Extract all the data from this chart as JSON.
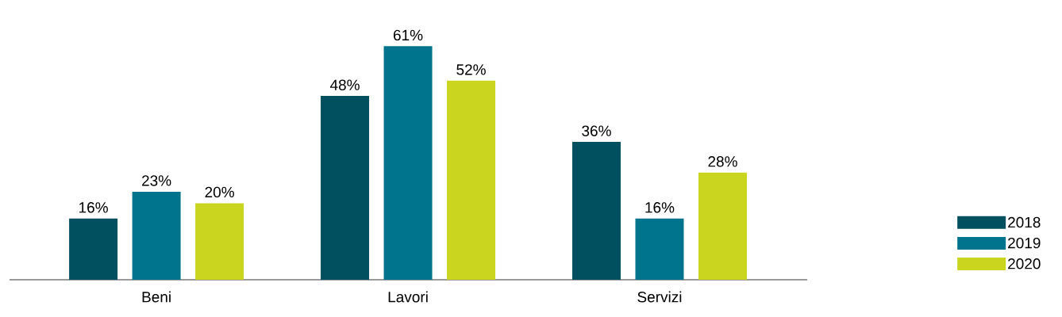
{
  "chart_data": {
    "type": "bar",
    "categories": [
      "Beni",
      "Lavori",
      "Servizi"
    ],
    "series": [
      {
        "name": "2018",
        "color": "#00505f",
        "values": [
          16,
          48,
          36
        ],
        "value_labels": [
          "16%",
          "48%",
          "36%"
        ]
      },
      {
        "name": "2019",
        "color": "#00748d",
        "values": [
          23,
          61,
          16
        ],
        "value_labels": [
          "23%",
          "61%",
          "16%"
        ]
      },
      {
        "name": "2020",
        "color": "#c9d51f",
        "values": [
          20,
          52,
          28
        ],
        "value_labels": [
          "20%",
          "52%",
          "28%"
        ]
      }
    ],
    "legend": "right"
  }
}
